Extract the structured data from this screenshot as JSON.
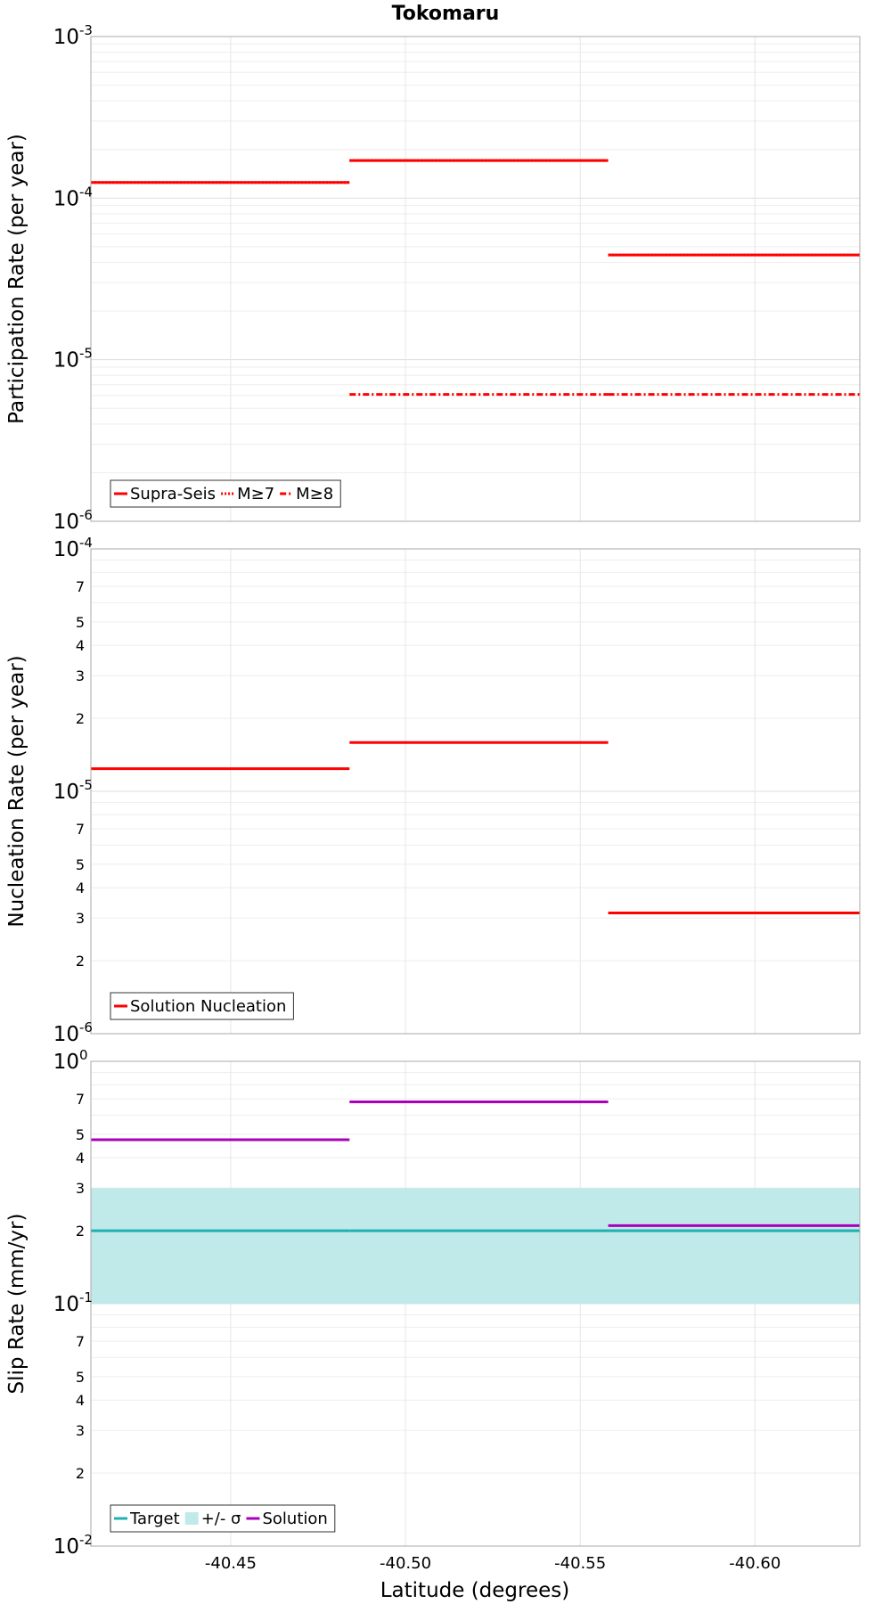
{
  "chart_data": {
    "title": "Tokomaru",
    "xlabel": "Latitude (degrees)",
    "x_axis": {
      "lim": [
        -40.41,
        -40.63
      ],
      "reversed": true,
      "ticks": [
        -40.45,
        -40.5,
        -40.55,
        -40.6
      ],
      "tick_labels": [
        "-40.45",
        "-40.50",
        "-40.55",
        "-40.60"
      ]
    },
    "segment_bounds": [
      [
        -40.41,
        -40.484
      ],
      [
        -40.484,
        -40.558
      ],
      [
        -40.558,
        -40.63
      ]
    ],
    "panels": [
      {
        "type": "line",
        "scale": "log",
        "ylabel": "Participation Rate (per year)",
        "ylim": [
          1e-06,
          0.001
        ],
        "decade_labels": [
          {
            "v": 1e-06,
            "b": "10",
            "e": "-6"
          },
          {
            "v": 1e-05,
            "b": "10",
            "e": "-5"
          },
          {
            "v": 0.0001,
            "b": "10",
            "e": "-4"
          },
          {
            "v": 0.001,
            "b": "10",
            "e": "-3"
          }
        ],
        "minor_labels": [],
        "series": [
          {
            "name": "Supra-Seis",
            "color": "#ff0000",
            "style": "solid",
            "segments": [
              0,
              1,
              2
            ],
            "values": [
              0.000125,
              0.000171,
              4.45e-05
            ]
          },
          {
            "name": "M≥7",
            "color": "#ff0000",
            "style": "dotted",
            "segments": [
              0,
              1,
              2
            ],
            "values": [
              0.000125,
              0.000171,
              4.45e-05
            ]
          },
          {
            "name": "M≥8",
            "color": "#ff0000",
            "style": "dashdot",
            "segments": [
              1,
              2
            ],
            "values": [
              6.1e-06,
              6.1e-06
            ]
          }
        ],
        "legend": {
          "placement": "bottom-left",
          "entries": [
            "Supra-Seis",
            "M≥7",
            "M≥8"
          ]
        }
      },
      {
        "type": "line",
        "scale": "log",
        "ylabel": "Nucleation Rate (per year)",
        "ylim": [
          1e-06,
          0.0001
        ],
        "decade_labels": [
          {
            "v": 1e-06,
            "b": "10",
            "e": "-6"
          },
          {
            "v": 1e-05,
            "b": "10",
            "e": "-5"
          },
          {
            "v": 0.0001,
            "b": "10",
            "e": "-4"
          }
        ],
        "minor_labels": [
          {
            "v": 2e-06,
            "t": "2"
          },
          {
            "v": 3e-06,
            "t": "3"
          },
          {
            "v": 4e-06,
            "t": "4"
          },
          {
            "v": 5e-06,
            "t": "5"
          },
          {
            "v": 7e-06,
            "t": "7"
          },
          {
            "v": 2e-05,
            "t": "2"
          },
          {
            "v": 3e-05,
            "t": "3"
          },
          {
            "v": 4e-05,
            "t": "4"
          },
          {
            "v": 5e-05,
            "t": "5"
          },
          {
            "v": 7e-05,
            "t": "7"
          }
        ],
        "series": [
          {
            "name": "Solution Nucleation",
            "color": "#ff0000",
            "style": "solid",
            "segments": [
              0,
              1,
              2
            ],
            "values": [
              1.24e-05,
              1.59e-05,
              3.15e-06
            ]
          }
        ],
        "legend": {
          "placement": "bottom-left",
          "entries": [
            "Solution Nucleation"
          ]
        }
      },
      {
        "type": "line",
        "scale": "log",
        "ylabel": "Slip Rate (mm/yr)",
        "ylim": [
          0.01,
          1
        ],
        "decade_labels": [
          {
            "v": 0.01,
            "b": "10",
            "e": "-2"
          },
          {
            "v": 0.1,
            "b": "10",
            "e": "-1"
          },
          {
            "v": 1,
            "b": "10",
            "e": "0"
          }
        ],
        "minor_labels": [
          {
            "v": 0.02,
            "t": "2"
          },
          {
            "v": 0.03,
            "t": "3"
          },
          {
            "v": 0.04,
            "t": "4"
          },
          {
            "v": 0.05,
            "t": "5"
          },
          {
            "v": 0.07,
            "t": "7"
          },
          {
            "v": 0.2,
            "t": "2"
          },
          {
            "v": 0.3,
            "t": "3"
          },
          {
            "v": 0.4,
            "t": "4"
          },
          {
            "v": 0.5,
            "t": "5"
          },
          {
            "v": 0.7,
            "t": "7"
          }
        ],
        "band": {
          "name": "+/- σ",
          "color": "#c0eaea",
          "low": 0.1,
          "high": 0.3
        },
        "series": [
          {
            "name": "Target",
            "color": "#20b0b0",
            "style": "solid",
            "segments": [
              0,
              1,
              2
            ],
            "values": [
              0.2,
              0.2,
              0.2
            ]
          },
          {
            "name": "Solution",
            "color": "#aa00bb",
            "style": "solid",
            "segments": [
              0,
              1,
              2
            ],
            "values": [
              0.475,
              0.68,
              0.21
            ]
          }
        ],
        "legend": {
          "placement": "bottom-left",
          "entries": [
            "Target",
            "+/- σ",
            "Solution"
          ]
        }
      }
    ]
  }
}
